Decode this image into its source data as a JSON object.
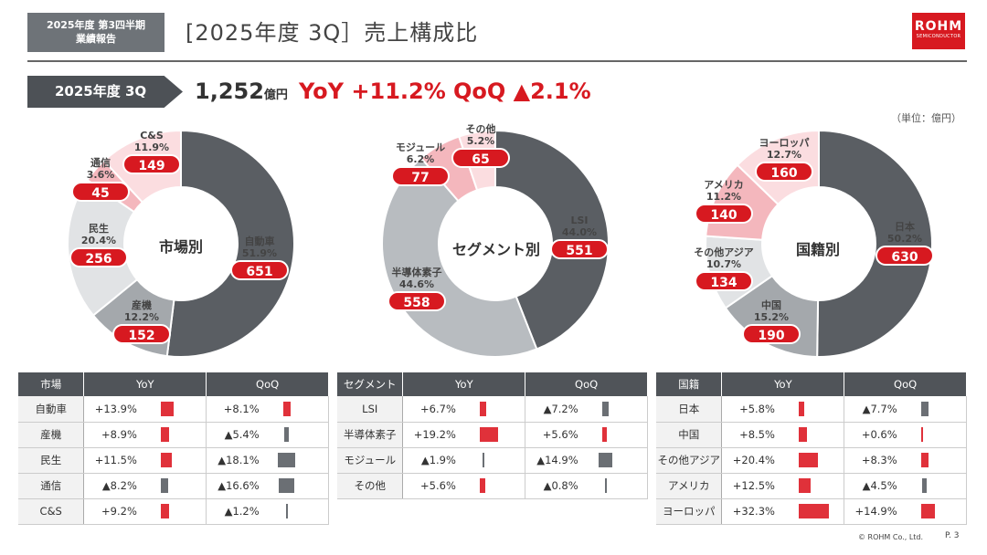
{
  "header": {
    "tag_line1": "2025年度 第3四半期",
    "tag_line2": "業績報告",
    "title": "[2025年度 3Q］売上構成比",
    "logo_main": "ROHM",
    "logo_sub": "SEMICONDUCTOR"
  },
  "summary": {
    "period": "2025年度 3Q",
    "total": "1,252",
    "total_unit": "億円",
    "yoy": "YoY +11.2%",
    "qoq": "QoQ ▲2.1%",
    "unit_note": "（単位：億円）"
  },
  "colors": {
    "red": "#d71920",
    "dark": "#5a5e63",
    "mid": "#a4a8ac",
    "light": "#e1e3e5",
    "pink1": "#f4b7bd",
    "pink2": "#fbdde0",
    "grey_dark": "#63676c",
    "grey_mid": "#b8bcc0",
    "grey_light": "#dcdfe2"
  },
  "chart_data": [
    {
      "type": "pie",
      "title": "市場別",
      "categories": [
        "自動車",
        "産機",
        "民生",
        "通信",
        "C&S"
      ],
      "values": [
        651,
        152,
        256,
        45,
        149
      ],
      "percents": [
        "51.9%",
        "12.2%",
        "20.4%",
        "3.6%",
        "11.9%"
      ],
      "slice_colors": [
        "#5a5e63",
        "#a4a8ac",
        "#e1e3e5",
        "#f4b7bd",
        "#fbdde0"
      ]
    },
    {
      "type": "pie",
      "title": "セグメント別",
      "categories": [
        "LSI",
        "半導体素子",
        "モジュール",
        "その他"
      ],
      "values": [
        551,
        558,
        77,
        65
      ],
      "percents": [
        "44.0%",
        "44.6%",
        "6.2%",
        "5.2%"
      ],
      "slice_colors": [
        "#5a5e63",
        "#b8bcc0",
        "#f4b7bd",
        "#fbdde0"
      ]
    },
    {
      "type": "pie",
      "title": "国籍別",
      "categories": [
        "日本",
        "中国",
        "その他アジア",
        "アメリカ",
        "ヨーロッパ"
      ],
      "values": [
        630,
        190,
        134,
        140,
        160
      ],
      "percents": [
        "50.2%",
        "15.2%",
        "10.7%",
        "11.2%",
        "12.7%"
      ],
      "slice_colors": [
        "#5a5e63",
        "#a4a8ac",
        "#e1e3e5",
        "#f4b7bd",
        "#fbdde0"
      ]
    }
  ],
  "labels": {
    "market": [
      {
        "name": "自動車",
        "pct": "51.9%",
        "val": "651"
      },
      {
        "name": "産機",
        "pct": "12.2%",
        "val": "152"
      },
      {
        "name": "民生",
        "pct": "20.4%",
        "val": "256"
      },
      {
        "name": "通信",
        "pct": "3.6%",
        "val": "45"
      },
      {
        "name": "C&S",
        "pct": "11.9%",
        "val": "149"
      }
    ],
    "segment": [
      {
        "name": "LSI",
        "pct": "44.0%",
        "val": "551"
      },
      {
        "name": "半導体素子",
        "pct": "44.6%",
        "val": "558"
      },
      {
        "name": "モジュール",
        "pct": "6.2%",
        "val": "77"
      },
      {
        "name": "その他",
        "pct": "5.2%",
        "val": "65"
      }
    ],
    "region": [
      {
        "name": "日本",
        "pct": "50.2%",
        "val": "630"
      },
      {
        "name": "中国",
        "pct": "15.2%",
        "val": "190"
      },
      {
        "name": "その他アジア",
        "pct": "10.7%",
        "val": "134"
      },
      {
        "name": "アメリカ",
        "pct": "11.2%",
        "val": "140"
      },
      {
        "name": "ヨーロッパ",
        "pct": "12.7%",
        "val": "160"
      }
    ]
  },
  "tables": [
    {
      "name": "market",
      "headers": [
        "市場",
        "YoY",
        "QoQ"
      ],
      "rows": [
        {
          "name": "自動車",
          "yoy": "+13.9%",
          "yoy_num": 13.9,
          "qoq": "+8.1%",
          "qoq_num": 8.1
        },
        {
          "name": "産機",
          "yoy": "+8.9%",
          "yoy_num": 8.9,
          "qoq": "▲5.4%",
          "qoq_num": -5.4
        },
        {
          "name": "民生",
          "yoy": "+11.5%",
          "yoy_num": 11.5,
          "qoq": "▲18.1%",
          "qoq_num": -18.1
        },
        {
          "name": "通信",
          "yoy": "▲8.2%",
          "yoy_num": -8.2,
          "qoq": "▲16.6%",
          "qoq_num": -16.6
        },
        {
          "name": "C&S",
          "yoy": "+9.2%",
          "yoy_num": 9.2,
          "qoq": "▲1.2%",
          "qoq_num": -1.2
        }
      ]
    },
    {
      "name": "segment",
      "headers": [
        "セグメント",
        "YoY",
        "QoQ"
      ],
      "rows": [
        {
          "name": "LSI",
          "yoy": "+6.7%",
          "yoy_num": 6.7,
          "qoq": "▲7.2%",
          "qoq_num": -7.2
        },
        {
          "name": "半導体素子",
          "yoy": "+19.2%",
          "yoy_num": 19.2,
          "qoq": "+5.6%",
          "qoq_num": 5.6
        },
        {
          "name": "モジュール",
          "yoy": "▲1.9%",
          "yoy_num": -1.9,
          "qoq": "▲14.9%",
          "qoq_num": -14.9
        },
        {
          "name": "その他",
          "yoy": "+5.6%",
          "yoy_num": 5.6,
          "qoq": "▲0.8%",
          "qoq_num": -0.8
        }
      ]
    },
    {
      "name": "region",
      "headers": [
        "国籍",
        "YoY",
        "QoQ"
      ],
      "rows": [
        {
          "name": "日本",
          "yoy": "+5.8%",
          "yoy_num": 5.8,
          "qoq": "▲7.7%",
          "qoq_num": -7.7
        },
        {
          "name": "中国",
          "yoy": "+8.5%",
          "yoy_num": 8.5,
          "qoq": "+0.6%",
          "qoq_num": 0.6
        },
        {
          "name": "その他アジア",
          "yoy": "+20.4%",
          "yoy_num": 20.4,
          "qoq": "+8.3%",
          "qoq_num": 8.3
        },
        {
          "name": "アメリカ",
          "yoy": "+12.5%",
          "yoy_num": 12.5,
          "qoq": "▲4.5%",
          "qoq_num": -4.5
        },
        {
          "name": "ヨーロッパ",
          "yoy": "+32.3%",
          "yoy_num": 32.3,
          "qoq": "+14.9%",
          "qoq_num": 14.9
        }
      ]
    }
  ],
  "footer": {
    "copyright": "© ROHM Co., Ltd.",
    "page": "P. 3"
  }
}
